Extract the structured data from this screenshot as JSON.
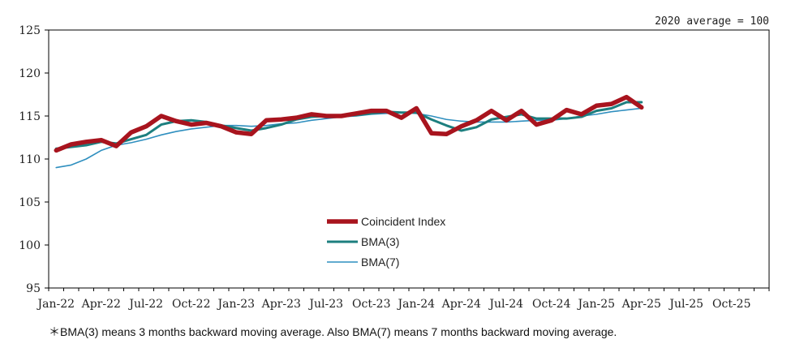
{
  "chart_data": {
    "type": "line",
    "unit_note": "2020 average = 100",
    "footnote": "＊BMA(3) means 3 months backward moving average. Also BMA(7) means 7 months backward moving average.",
    "x_tick_labels": [
      "Jan-22",
      "Apr-22",
      "Jul-22",
      "Oct-22",
      "Jan-23",
      "Apr-23",
      "Jul-23",
      "Oct-23",
      "Jan-24",
      "Apr-24",
      "Jul-24",
      "Oct-24",
      "Jan-25",
      "Apr-25",
      "Jul-25",
      "Oct-25"
    ],
    "x_range": [
      "Jan-22",
      "Dec-25"
    ],
    "ylim": [
      95,
      125
    ],
    "y_ticks": [
      95,
      100,
      105,
      110,
      115,
      120,
      125
    ],
    "legend_position": "center-left",
    "series": [
      {
        "name": "Coincident Index",
        "color": "#a8141e",
        "start": "Jan-22",
        "values": [
          111.0,
          111.7,
          112.0,
          112.2,
          111.5,
          113.1,
          113.8,
          115.0,
          114.4,
          114.0,
          114.2,
          113.8,
          113.1,
          112.9,
          114.5,
          114.6,
          114.8,
          115.2,
          115.0,
          115.0,
          115.3,
          115.6,
          115.6,
          114.8,
          115.9,
          113.0,
          112.9,
          113.8,
          114.5,
          115.6,
          114.5,
          115.6,
          114.0,
          114.5,
          115.7,
          115.2,
          116.2,
          116.4,
          117.2,
          116.0
        ]
      },
      {
        "name": "BMA(3)",
        "color": "#1d7f7f",
        "start": "Jan-22",
        "values": [
          111.2,
          111.4,
          111.6,
          112.0,
          111.8,
          112.3,
          112.8,
          114.0,
          114.4,
          114.5,
          114.3,
          113.9,
          113.6,
          113.3,
          113.6,
          114.0,
          114.6,
          114.9,
          115.0,
          115.1,
          115.1,
          115.3,
          115.5,
          115.4,
          115.4,
          114.6,
          113.9,
          113.3,
          113.7,
          114.6,
          114.9,
          115.2,
          114.7,
          114.7,
          114.7,
          114.9,
          115.6,
          115.9,
          116.6,
          116.6
        ]
      },
      {
        "name": "BMA(7)",
        "color": "#2f8fbf",
        "start": "Jan-22",
        "values": [
          109.0,
          109.3,
          110.0,
          111.0,
          111.6,
          111.9,
          112.3,
          112.8,
          113.2,
          113.5,
          113.7,
          113.9,
          113.9,
          113.8,
          113.9,
          114.1,
          114.2,
          114.5,
          114.7,
          114.9,
          115.0,
          115.2,
          115.3,
          115.4,
          115.3,
          115.0,
          114.6,
          114.4,
          114.3,
          114.3,
          114.3,
          114.4,
          114.5,
          114.5,
          114.7,
          115.0,
          115.2,
          115.5,
          115.7,
          115.9
        ]
      }
    ]
  }
}
